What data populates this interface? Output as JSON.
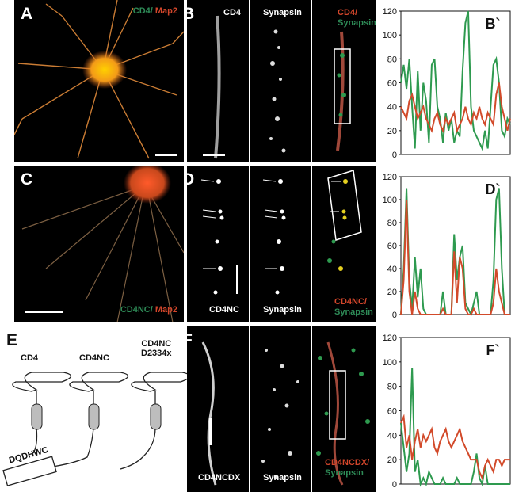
{
  "panels": {
    "A": {
      "letter": "A",
      "label_green": "CD4/",
      "label_red": " Map2"
    },
    "B": {
      "letter": "B",
      "ch1": "CD4",
      "ch2": "Synapsin",
      "merge_red": "CD4/",
      "merge_green": "Synapsin"
    },
    "C": {
      "letter": "C",
      "label_green": "CD4NC/",
      "label_red": " Map2"
    },
    "D": {
      "letter": "D",
      "ch1": "CD4NC",
      "ch2": "Synapsin",
      "merge_red": "CD4NC/",
      "merge_green": "Synapsin"
    },
    "E": {
      "letter": "E",
      "constructs": [
        "CD4",
        "CD4NC",
        "CD4NC\nD2334x"
      ],
      "tail": "DQDHWC"
    },
    "F": {
      "letter": "F",
      "ch1": "CD4NCDX",
      "ch2": "Synapsin",
      "merge_red": "CD4NCDX/",
      "merge_green": "Synapsin"
    }
  },
  "colors": {
    "green": "#2e9a4f",
    "red": "#d24a2a"
  },
  "chart_data": [
    {
      "type": "line",
      "title": "B`",
      "ylim": [
        0,
        120
      ],
      "yticks": [
        0,
        20,
        40,
        60,
        80,
        100,
        120
      ],
      "x": [
        0,
        1,
        2,
        3,
        4,
        5,
        6,
        7,
        8,
        9,
        10,
        11,
        12,
        13,
        14,
        15,
        16,
        17,
        18,
        19,
        20,
        21,
        22,
        23,
        24,
        25,
        26,
        27,
        28,
        29,
        30,
        31,
        32,
        33,
        34,
        35,
        36,
        37,
        38,
        39
      ],
      "series": [
        {
          "color": "#2e9a4f",
          "values": [
            60,
            75,
            55,
            80,
            40,
            5,
            70,
            20,
            60,
            45,
            10,
            75,
            80,
            40,
            30,
            10,
            35,
            20,
            30,
            10,
            20,
            15,
            70,
            110,
            120,
            40,
            20,
            15,
            10,
            5,
            20,
            5,
            40,
            75,
            80,
            60,
            20,
            15,
            30,
            25
          ]
        },
        {
          "color": "#d24a2a",
          "values": [
            40,
            35,
            30,
            45,
            50,
            40,
            30,
            35,
            40,
            30,
            25,
            20,
            30,
            35,
            25,
            20,
            30,
            25,
            30,
            35,
            20,
            25,
            30,
            40,
            30,
            25,
            35,
            30,
            40,
            30,
            25,
            35,
            30,
            25,
            50,
            60,
            40,
            30,
            20,
            30
          ]
        }
      ]
    },
    {
      "type": "line",
      "title": "D`",
      "ylim": [
        0,
        120
      ],
      "yticks": [
        0,
        20,
        40,
        60,
        80,
        100,
        120
      ],
      "x": [
        0,
        1,
        2,
        3,
        4,
        5,
        6,
        7,
        8,
        9,
        10,
        11,
        12,
        13,
        14,
        15,
        16,
        17,
        18,
        19,
        20,
        21,
        22,
        23,
        24,
        25,
        26,
        27,
        28,
        29,
        30,
        31,
        32,
        33,
        34,
        35,
        36,
        37,
        38,
        39
      ],
      "series": [
        {
          "color": "#2e9a4f",
          "values": [
            0,
            40,
            110,
            30,
            5,
            50,
            15,
            40,
            5,
            0,
            0,
            0,
            0,
            0,
            0,
            20,
            0,
            0,
            0,
            70,
            30,
            50,
            60,
            10,
            5,
            0,
            10,
            20,
            0,
            0,
            0,
            0,
            0,
            30,
            100,
            110,
            40,
            0,
            0,
            0
          ]
        },
        {
          "color": "#d24a2a",
          "values": [
            0,
            30,
            100,
            20,
            0,
            20,
            5,
            0,
            0,
            0,
            0,
            0,
            0,
            0,
            0,
            5,
            0,
            0,
            0,
            55,
            10,
            50,
            40,
            5,
            0,
            0,
            5,
            0,
            0,
            0,
            0,
            0,
            0,
            10,
            40,
            20,
            10,
            0,
            0,
            0
          ]
        }
      ]
    },
    {
      "type": "line",
      "title": "F`",
      "ylim": [
        0,
        120
      ],
      "yticks": [
        0,
        20,
        40,
        60,
        80,
        100,
        120
      ],
      "x": [
        0,
        1,
        2,
        3,
        4,
        5,
        6,
        7,
        8,
        9,
        10,
        11,
        12,
        13,
        14,
        15,
        16,
        17,
        18,
        19,
        20,
        21,
        22,
        23,
        24,
        25,
        26,
        27,
        28,
        29,
        30,
        31,
        32,
        33,
        34,
        35,
        36,
        37,
        38,
        39
      ],
      "series": [
        {
          "color": "#2e9a4f",
          "values": [
            50,
            30,
            10,
            25,
            95,
            10,
            20,
            0,
            5,
            0,
            10,
            5,
            0,
            0,
            0,
            5,
            0,
            0,
            0,
            0,
            5,
            0,
            0,
            0,
            0,
            0,
            10,
            25,
            5,
            0,
            15,
            0,
            0,
            0,
            0,
            0,
            0,
            0,
            0,
            0
          ]
        },
        {
          "color": "#d24a2a",
          "values": [
            50,
            55,
            30,
            40,
            20,
            35,
            45,
            30,
            40,
            35,
            40,
            45,
            30,
            25,
            35,
            40,
            45,
            35,
            30,
            35,
            40,
            45,
            35,
            30,
            25,
            20,
            20,
            20,
            10,
            5,
            15,
            20,
            15,
            10,
            20,
            20,
            15,
            20,
            20,
            20
          ]
        }
      ]
    }
  ]
}
